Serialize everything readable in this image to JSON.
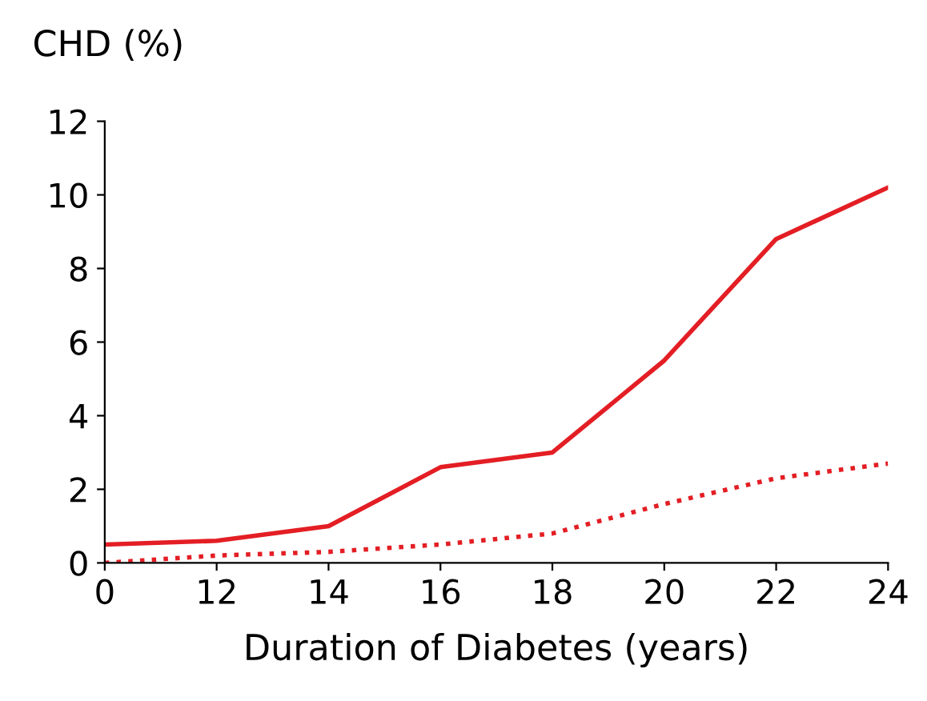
{
  "chart_data": {
    "type": "line",
    "ylabel": "CHD (%)",
    "xlabel": "Duration of Diabetes (years)",
    "categories": [
      "0",
      "12",
      "14",
      "16",
      "18",
      "20",
      "22",
      "24"
    ],
    "series": [
      {
        "color": "#e31e24",
        "line_style": "solid",
        "values": [
          0.5,
          0.6,
          1.0,
          2.6,
          3.0,
          5.5,
          8.8,
          10.2
        ]
      },
      {
        "color": "#e31e24",
        "line_style": "dotted",
        "values": [
          0.0,
          0.2,
          0.3,
          0.5,
          0.8,
          1.6,
          2.3,
          2.7
        ]
      }
    ],
    "ylim": [
      0,
      12
    ],
    "yticks": [
      0,
      2,
      4,
      6,
      8,
      10,
      12
    ],
    "grid": false,
    "legend": false,
    "marker": "none"
  }
}
